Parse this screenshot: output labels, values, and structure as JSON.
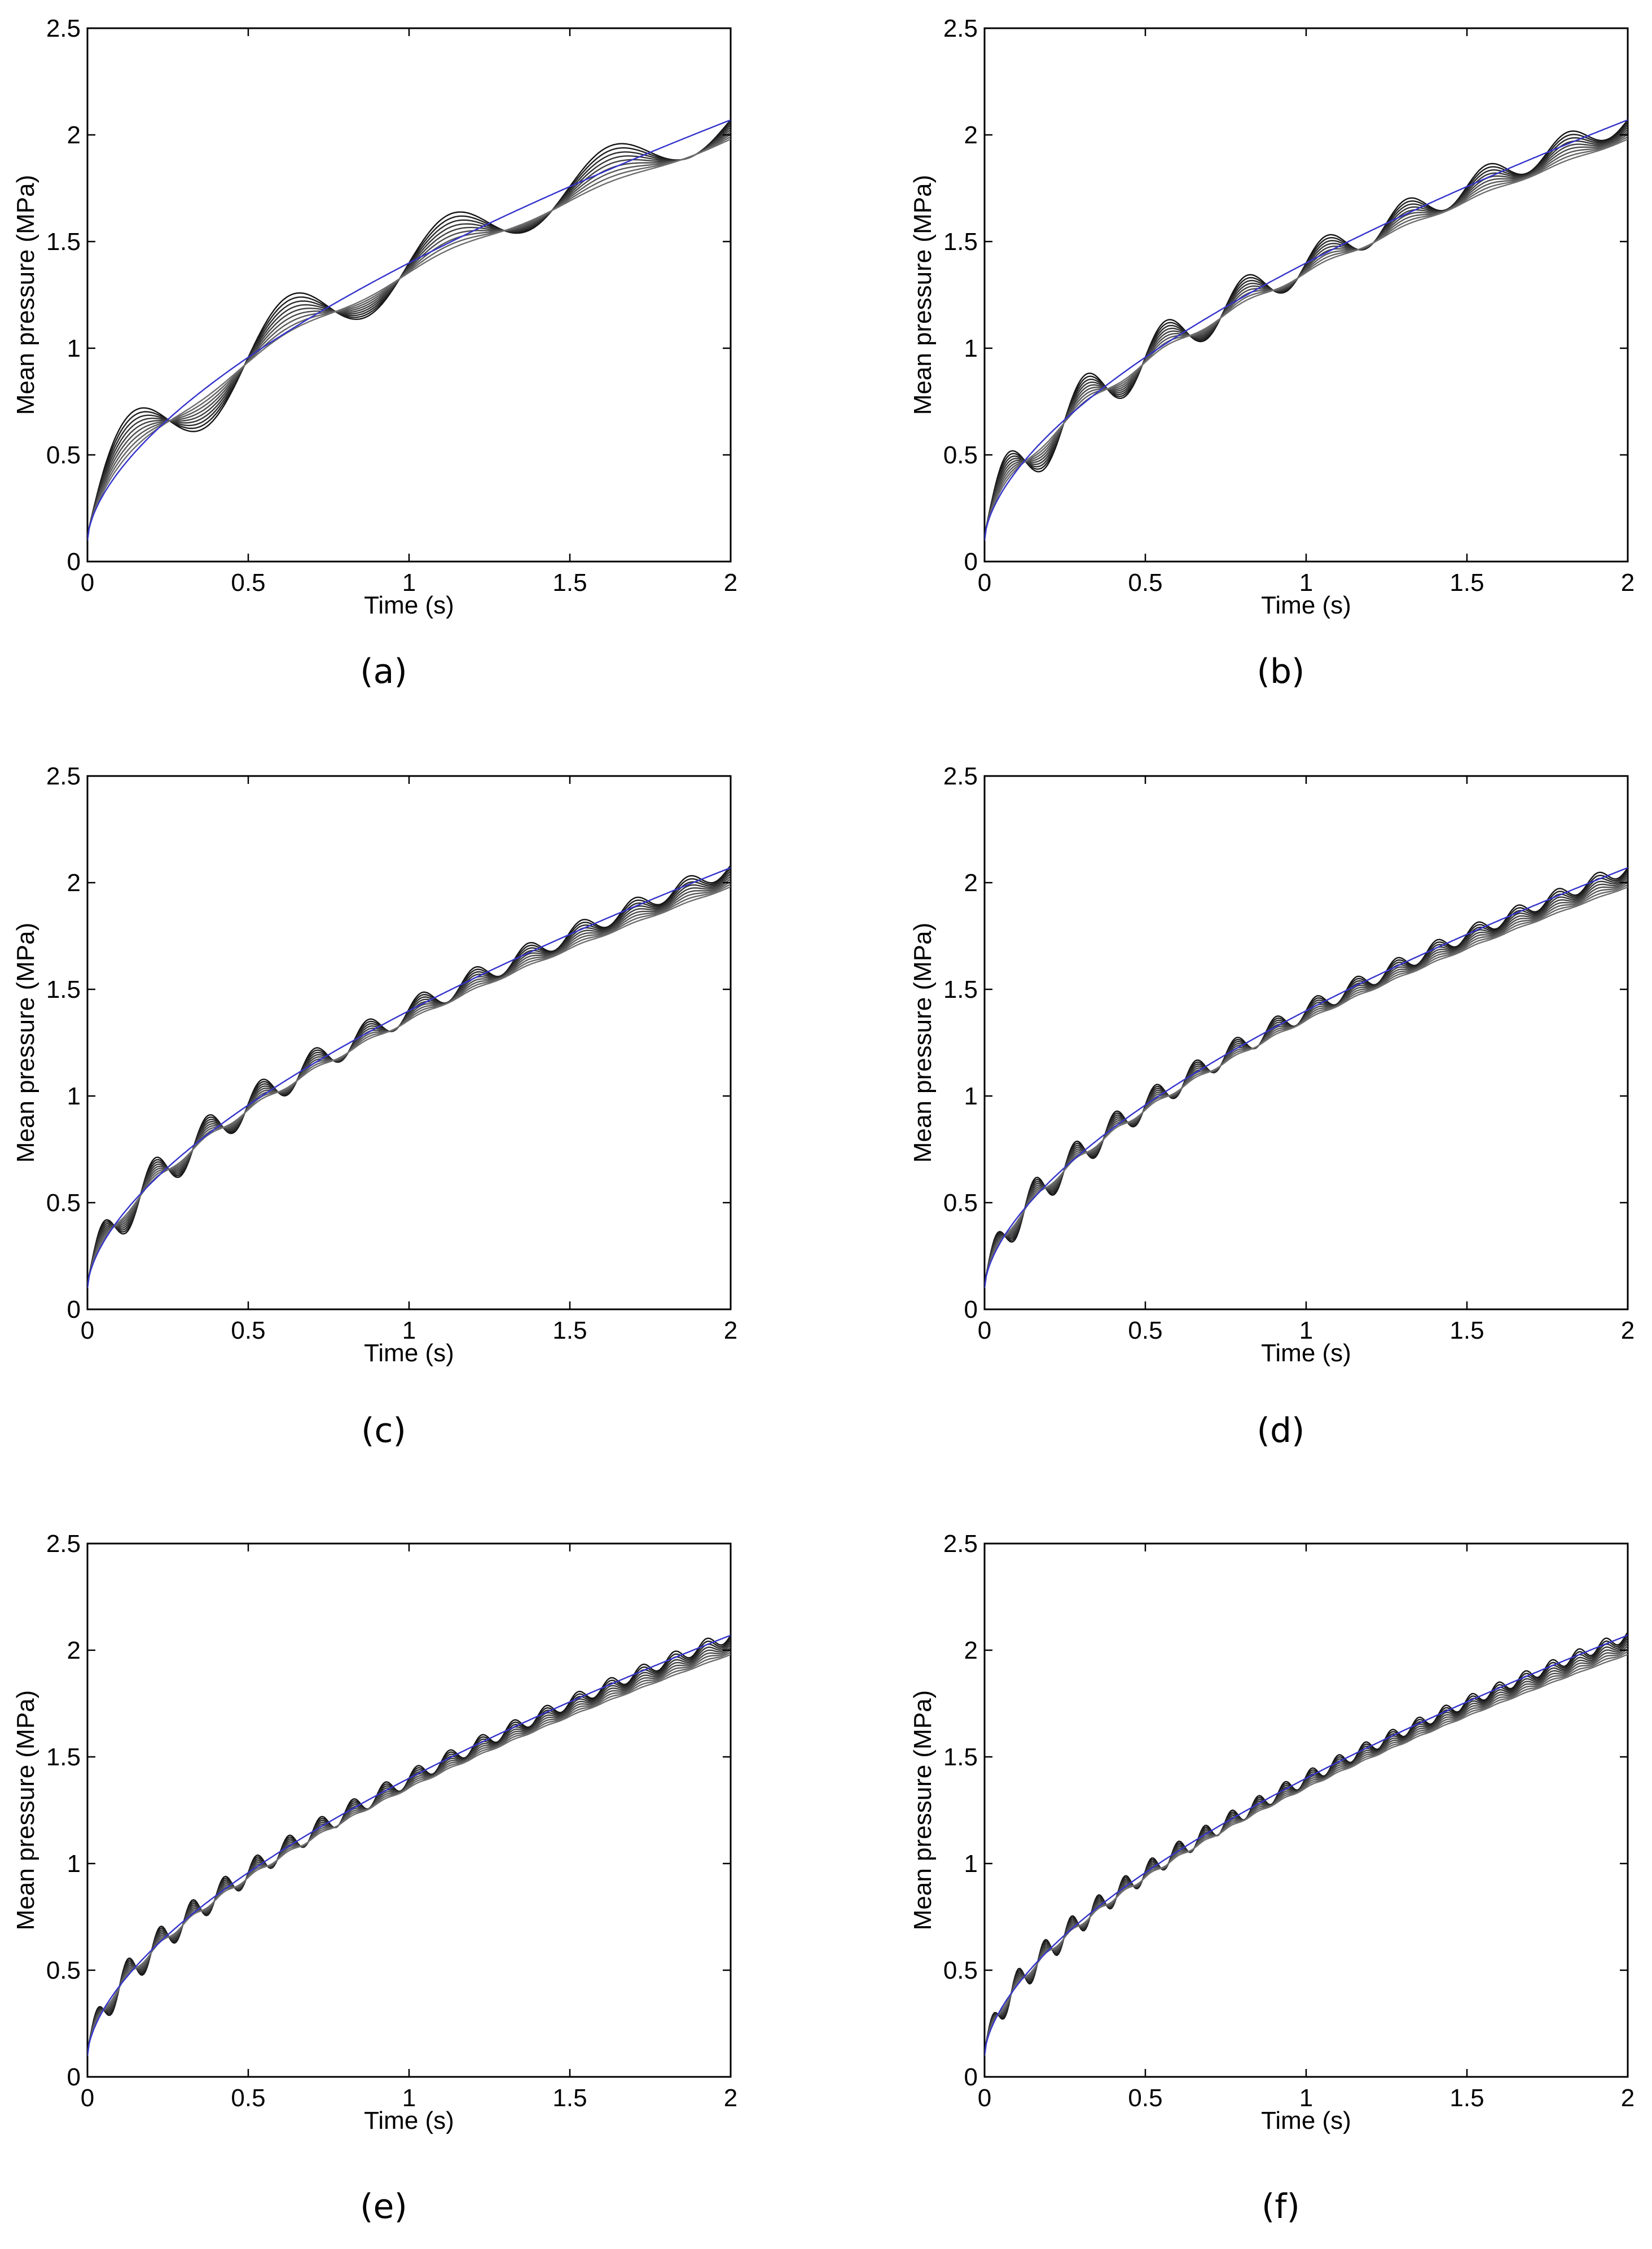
{
  "figure": {
    "description_free": true,
    "line_colors": {
      "simulated": "#000000",
      "reference": "#3333cc"
    }
  },
  "chart_data": [
    {
      "panel": "(a)",
      "type": "line",
      "xlabel": "Time (s)",
      "ylabel": "Mean pressure (MPa)",
      "xlim": [
        0,
        2
      ],
      "ylim": [
        0,
        2.5
      ],
      "xticks": [
        "0",
        "0.5",
        "1",
        "1.5",
        "2"
      ],
      "yticks": [
        "0",
        "0.5",
        "1",
        "1.5",
        "2",
        "2.5"
      ],
      "reference_end": 2.07,
      "osc_period": 0.5,
      "osc_amplitude": 0.22,
      "n_curves": 9
    },
    {
      "panel": "(b)",
      "type": "line",
      "xlabel": "Time (s)",
      "ylabel": "Mean pressure (MPa)",
      "xlim": [
        0,
        2
      ],
      "ylim": [
        0,
        2.5
      ],
      "xticks": [
        "0",
        "0.5",
        "1",
        "1.5",
        "2"
      ],
      "yticks": [
        "0",
        "0.5",
        "1",
        "1.5",
        "2",
        "2.5"
      ],
      "reference_end": 2.07,
      "osc_period": 0.25,
      "osc_amplitude": 0.16,
      "n_curves": 9
    },
    {
      "panel": "(c)",
      "type": "line",
      "xlabel": "Time (s)",
      "ylabel": "Mean pressure (MPa)",
      "xlim": [
        0,
        2
      ],
      "ylim": [
        0,
        2.5
      ],
      "xticks": [
        "0",
        "0.5",
        "1",
        "1.5",
        "2"
      ],
      "yticks": [
        "0",
        "0.5",
        "1",
        "1.5",
        "2",
        "2.5"
      ],
      "reference_end": 2.07,
      "osc_period": 0.166,
      "osc_amplitude": 0.12,
      "n_curves": 9
    },
    {
      "panel": "(d)",
      "type": "line",
      "xlabel": "Time (s)",
      "ylabel": "Mean pressure (MPa)",
      "xlim": [
        0,
        2
      ],
      "ylim": [
        0,
        2.5
      ],
      "xticks": [
        "0",
        "0.5",
        "1",
        "1.5",
        "2"
      ],
      "yticks": [
        "0",
        "0.5",
        "1",
        "1.5",
        "2",
        "2.5"
      ],
      "reference_end": 2.07,
      "osc_period": 0.125,
      "osc_amplitude": 0.1,
      "n_curves": 9
    },
    {
      "panel": "(e)",
      "type": "line",
      "xlabel": "Time (s)",
      "ylabel": "Mean pressure (MPa)",
      "xlim": [
        0,
        2
      ],
      "ylim": [
        0,
        2.5
      ],
      "xticks": [
        "0",
        "0.5",
        "1",
        "1.5",
        "2"
      ],
      "yticks": [
        "0",
        "0.5",
        "1",
        "1.5",
        "2",
        "2.5"
      ],
      "reference_end": 2.07,
      "osc_period": 0.1,
      "osc_amplitude": 0.09,
      "n_curves": 9
    },
    {
      "panel": "(f)",
      "type": "line",
      "xlabel": "Time (s)",
      "ylabel": "Mean pressure (MPa)",
      "xlim": [
        0,
        2
      ],
      "ylim": [
        0,
        2.5
      ],
      "xticks": [
        "0",
        "0.5",
        "1",
        "1.5",
        "2"
      ],
      "yticks": [
        "0",
        "0.5",
        "1",
        "1.5",
        "2",
        "2.5"
      ],
      "reference_end": 2.07,
      "osc_period": 0.083,
      "osc_amplitude": 0.08,
      "n_curves": 9
    }
  ]
}
